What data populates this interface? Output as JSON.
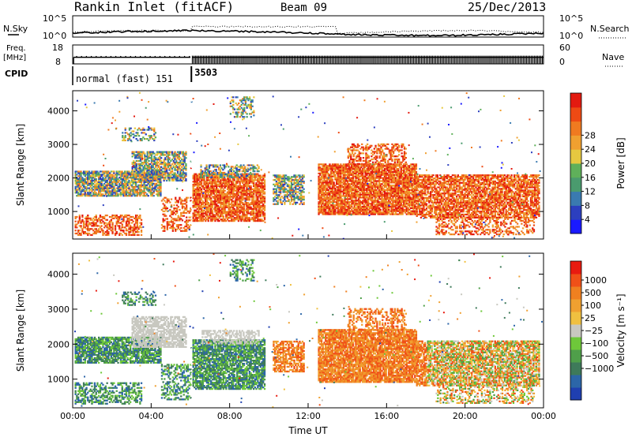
{
  "header": {
    "station": "Rankin Inlet (fitACF)",
    "beam": "Beam 09",
    "date": "25/Dec/2013"
  },
  "labels": {
    "nsky": "N.Sky",
    "nsearch": "N.Search",
    "freq_line1": "Freq.",
    "freq_line2": "[MHz]",
    "nave": "Nave",
    "cpid": "CPID",
    "ylabel_range": "Slant Range [km]",
    "xlabel": "Time UT",
    "cpid_segments": [
      {
        "label": "normal (fast) 151",
        "t_start": 0.0,
        "t_end": 6.05
      },
      {
        "label": "3503",
        "t_start": 6.05,
        "t_end": 24.0
      }
    ]
  },
  "noise_panel": {
    "left_ticks": [
      "10^5",
      "10^0"
    ],
    "right_ticks": [
      "10^5",
      "10^0"
    ]
  },
  "freq_panel": {
    "left_ticks": [
      "18",
      "8"
    ],
    "right_ticks": [
      "60",
      "0"
    ],
    "freq_mhz": 11.5
  },
  "chart_data": [
    {
      "type": "heatmap",
      "name": "power",
      "title": "",
      "xlabel": "Time UT",
      "ylabel": "Slant Range [km]",
      "xlim": [
        0,
        24
      ],
      "ylim": [
        180,
        4600
      ],
      "x_ticks": [
        "00:00",
        "04:00",
        "08:00",
        "12:00",
        "16:00",
        "20:00",
        "00:00"
      ],
      "y_ticks": [
        1000,
        2000,
        3000,
        4000
      ],
      "colorbar": {
        "label": "Power [dB]",
        "ticks": [
          "4",
          "8",
          "12",
          "16",
          "20",
          "24",
          "28"
        ],
        "colors": [
          "#1a1aff",
          "#2c3fbf",
          "#3a7ab0",
          "#4a9b6e",
          "#5fb05a",
          "#e6c840",
          "#f0a030",
          "#f07a20",
          "#ee4a14",
          "#e31a10"
        ]
      }
    },
    {
      "type": "heatmap",
      "name": "velocity",
      "title": "",
      "xlabel": "Time UT",
      "ylabel": "Slant Range [km]",
      "xlim": [
        0,
        24
      ],
      "ylim": [
        180,
        4600
      ],
      "x_ticks": [
        "00:00",
        "04:00",
        "08:00",
        "12:00",
        "16:00",
        "20:00",
        "00:00"
      ],
      "y_ticks": [
        1000,
        2000,
        3000,
        4000
      ],
      "colorbar": {
        "label": "Velocity [m s⁻¹]",
        "ticks": [
          "1000",
          "500",
          "100",
          "25",
          "−25",
          "−100",
          "−500",
          "−1000"
        ],
        "colors": [
          "#1f3fb0",
          "#2c66a8",
          "#3e7a5a",
          "#4f9f4a",
          "#6ec83a",
          "#c8c8c0",
          "#f0c040",
          "#f0a030",
          "#f08020",
          "#f05018",
          "#e81a10"
        ]
      }
    }
  ]
}
